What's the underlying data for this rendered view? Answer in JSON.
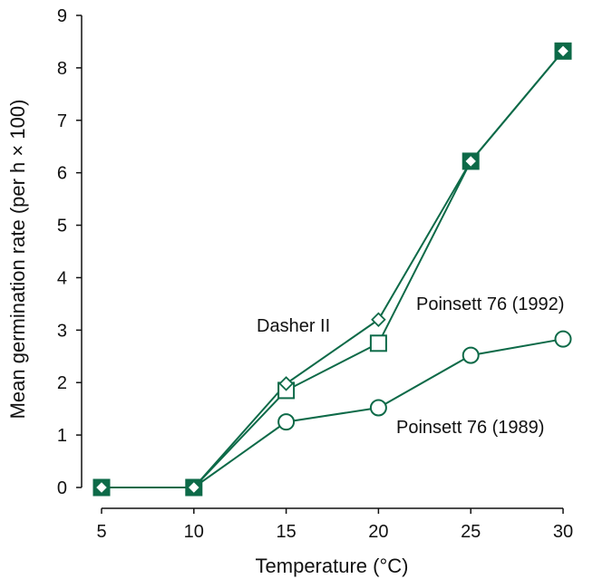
{
  "chart_data": {
    "type": "line",
    "title": "",
    "xlabel": "Temperature (°C)",
    "ylabel": "Mean germination rate (per h × 100)",
    "xlim": [
      5,
      30
    ],
    "ylim": [
      0,
      9
    ],
    "xticks": [
      5,
      10,
      15,
      20,
      25,
      30
    ],
    "yticks": [
      0,
      1,
      2,
      3,
      4,
      5,
      6,
      7,
      8,
      9
    ],
    "grid": false,
    "legend": "none",
    "x": [
      5,
      10,
      15,
      20,
      25,
      30
    ],
    "series": [
      {
        "name": "Dasher II",
        "marker": "diamond",
        "values": [
          0,
          0,
          1.98,
          3.2,
          6.22,
          8.32
        ]
      },
      {
        "name": "Poinsett 76 (1992)",
        "marker": "square",
        "values": [
          0,
          0,
          1.85,
          2.75,
          6.22,
          8.32
        ]
      },
      {
        "name": "Poinsett 76 (1989)",
        "marker": "circle",
        "values": [
          0,
          0,
          1.25,
          1.52,
          2.52,
          2.83
        ]
      }
    ],
    "colors": {
      "line": "#0d6a48",
      "marker_fill": "#ffffff"
    }
  }
}
